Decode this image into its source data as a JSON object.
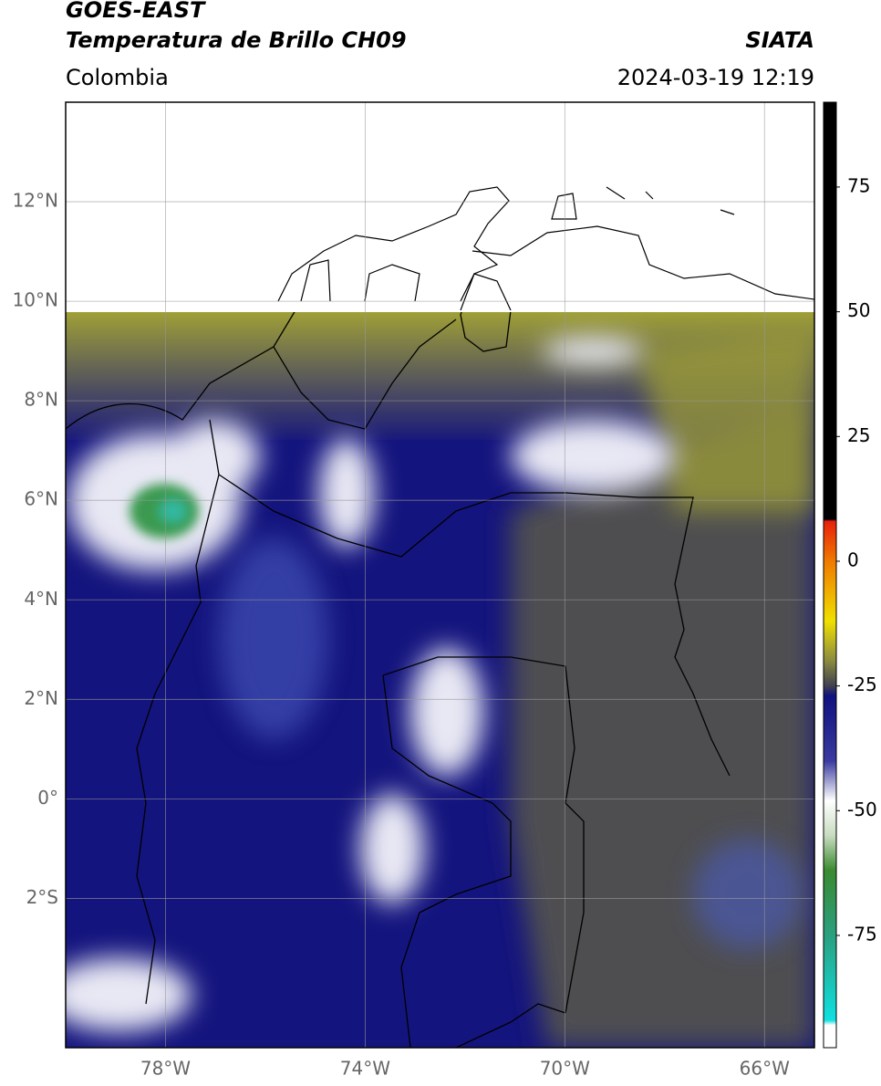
{
  "header": {
    "title": "GOES-EAST",
    "subtitle": "Temperatura de Brillo CH09",
    "source": "SIATA",
    "region": "Colombia",
    "datetime": "2024-03-19 12:19"
  },
  "map": {
    "xlim": [
      -80,
      -65
    ],
    "ylim": [
      -5,
      14
    ],
    "grid": true,
    "xticks": [
      {
        "value": -78,
        "label": "78°W"
      },
      {
        "value": -74,
        "label": "74°W"
      },
      {
        "value": -70,
        "label": "70°W"
      },
      {
        "value": -66,
        "label": "66°W"
      }
    ],
    "yticks": [
      {
        "value": 12,
        "label": "12°N"
      },
      {
        "value": 10,
        "label": "10°N"
      },
      {
        "value": 8,
        "label": "8°N"
      },
      {
        "value": 6,
        "label": "6°N"
      },
      {
        "value": 4,
        "label": "4°N"
      },
      {
        "value": 2,
        "label": "2°N"
      },
      {
        "value": 0,
        "label": "0°"
      },
      {
        "value": -2,
        "label": "2°S"
      }
    ]
  },
  "colorbar": {
    "clim": [
      -97.5,
      92
    ],
    "ticks": [
      75,
      50,
      25,
      0,
      -25,
      -50,
      -75
    ],
    "stops": [
      {
        "value": 92,
        "color": "#000000"
      },
      {
        "value": 8.4,
        "color": "#000000"
      },
      {
        "value": 8,
        "color": "#e8200c"
      },
      {
        "value": 0,
        "color": "#f07a00"
      },
      {
        "value": -12,
        "color": "#f0e000"
      },
      {
        "value": -20,
        "color": "#8a8a40"
      },
      {
        "value": -25,
        "color": "#404050"
      },
      {
        "value": -27,
        "color": "#101080"
      },
      {
        "value": -40,
        "color": "#3a3aa0"
      },
      {
        "value": -48,
        "color": "#ffffff"
      },
      {
        "value": -55,
        "color": "#c8dcc0"
      },
      {
        "value": -62,
        "color": "#3a8a30"
      },
      {
        "value": -75,
        "color": "#2aa080"
      },
      {
        "value": -92,
        "color": "#10e0e0"
      },
      {
        "value": -93,
        "color": "#ffffff"
      },
      {
        "value": -97.5,
        "color": "#ffffff"
      }
    ]
  }
}
